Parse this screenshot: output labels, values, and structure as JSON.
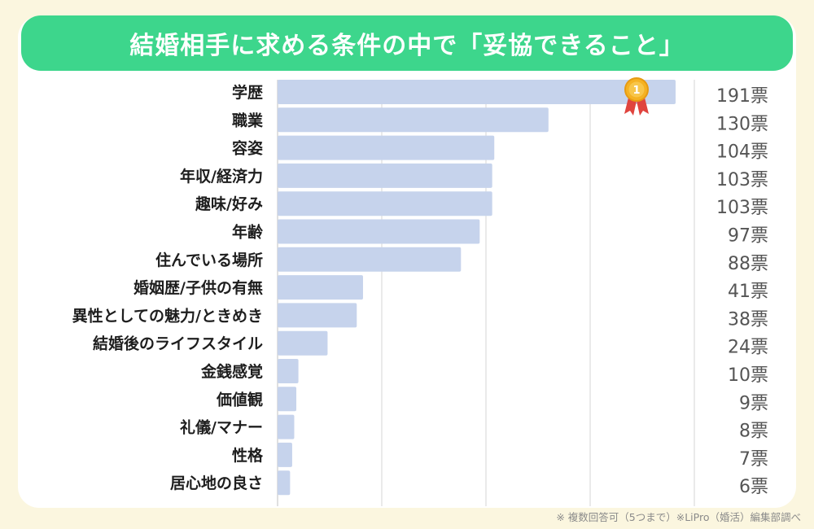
{
  "title": "結婚相手に求める条件の中で「妥協できること」",
  "footnote": "※ 複数回答可（5つまで）※LiPro（婚活）編集部調べ",
  "medal_label": "1",
  "colors": {
    "bar": "#c6d3ec",
    "title_bg": "#3dd68c",
    "grid": "#d6d6d6",
    "label": "#1e1e1e",
    "value": "#555555"
  },
  "chart_data": {
    "type": "bar",
    "orientation": "horizontal",
    "title": "結婚相手に求める条件の中で「妥協できること」",
    "categories": [
      "学歴",
      "職業",
      "容姿",
      "年収/経済力",
      "趣味/好み",
      "年齢",
      "住んでいる場所",
      "婚姻歴/子供の有無",
      "異性としての魅力/ときめき",
      "結婚後のライフスタイル",
      "金銭感覚",
      "価値観",
      "礼儀/マナー",
      "性格",
      "居心地の良さ"
    ],
    "values": [
      191,
      130,
      104,
      103,
      103,
      97,
      88,
      41,
      38,
      24,
      10,
      9,
      8,
      7,
      6
    ],
    "value_labels": [
      "191票",
      "130票",
      "104票",
      "103票",
      "103票",
      "97票",
      "88票",
      "41票",
      "38票",
      "24票",
      "10票",
      "9票",
      "8票",
      "7票",
      "6票"
    ],
    "xlim": [
      0,
      200
    ],
    "xticks": [
      0,
      50,
      100,
      150,
      200
    ],
    "grid": true
  }
}
